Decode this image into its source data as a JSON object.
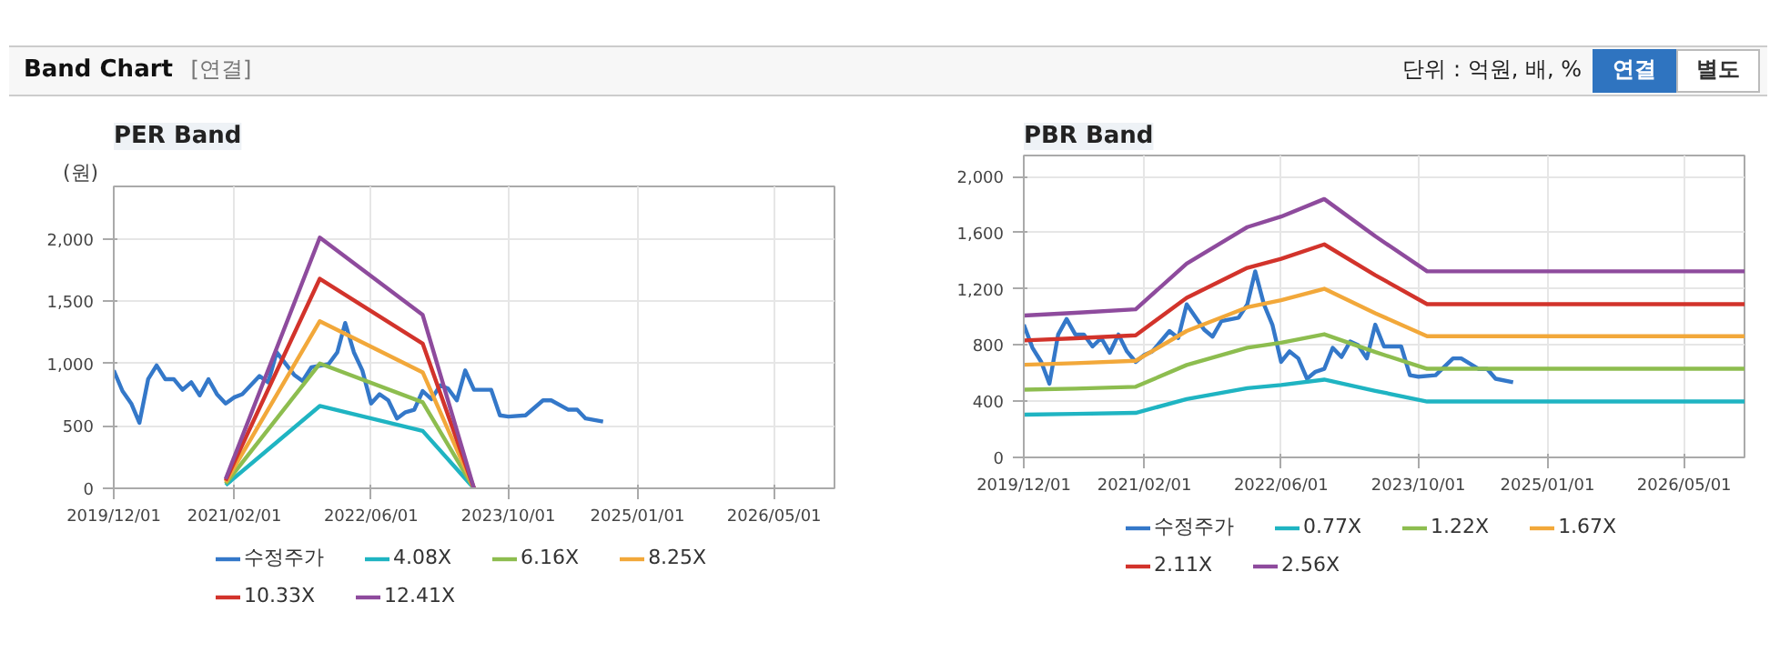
{
  "chart_data": [
    {
      "type": "line",
      "title": "PER Band",
      "ylabel": "(원)",
      "annotations": [
        "Band Chart",
        "[연결]"
      ],
      "xlim": [
        "2019-12-01",
        "2026-12-01"
      ],
      "xticks": [
        {
          "value": "2019-12-01",
          "label": "2019/12/01"
        },
        {
          "value": "2021-02-01",
          "label": "2021/02/01"
        },
        {
          "value": "2022-06-01",
          "label": "2022/06/01"
        },
        {
          "value": "2023-10-01",
          "label": "2023/10/01"
        },
        {
          "value": "2025-01-01",
          "label": "2025/01/01"
        },
        {
          "value": "2026-05-01",
          "label": "2026/05/01"
        }
      ],
      "ylim": [
        0,
        2420
      ],
      "yticks": [
        0,
        {
          "value": 500,
          "label": "500"
        },
        {
          "value": 1000,
          "label": "1,000"
        },
        {
          "value": 1500,
          "label": "1,500"
        },
        {
          "value": 2000,
          "label": "2,000"
        }
      ],
      "grid": true,
      "legend": "bottom",
      "line_style": "solid",
      "series": [
        {
          "name": "수정주가",
          "color": "#3478c9",
          "x": [
            "2019-12-01",
            "2020-01-01",
            "2020-02-01",
            "2020-03-01",
            "2020-04-01",
            "2020-05-01",
            "2020-06-01",
            "2020-07-01",
            "2020-08-01",
            "2020-09-01",
            "2020-10-01",
            "2020-11-01",
            "2020-12-01",
            "2021-01-01",
            "2021-02-01",
            "2021-03-01",
            "2021-05-01",
            "2021-06-01",
            "2021-07-01",
            "2021-09-01",
            "2021-10-01",
            "2021-11-01",
            "2022-01-01",
            "2022-02-01",
            "2022-03-01",
            "2022-04-01",
            "2022-05-01",
            "2022-06-01",
            "2022-07-01",
            "2022-08-01",
            "2022-09-01",
            "2022-10-01",
            "2022-11-01",
            "2022-12-01",
            "2023-01-01",
            "2023-02-01",
            "2023-03-01",
            "2023-04-01",
            "2023-05-01",
            "2023-06-01",
            "2023-08-01",
            "2023-09-01",
            "2023-10-01",
            "2023-12-01",
            "2024-02-01",
            "2024-03-01",
            "2024-05-01",
            "2024-06-01",
            "2024-07-01",
            "2024-09-01"
          ],
          "values": [
            945,
            780,
            680,
            525,
            875,
            985,
            875,
            875,
            790,
            850,
            745,
            875,
            755,
            680,
            730,
            755,
            900,
            850,
            1090,
            910,
            860,
            970,
            995,
            1090,
            1325,
            1090,
            945,
            680,
            755,
            705,
            560,
            610,
            630,
            780,
            715,
            825,
            800,
            705,
            945,
            790,
            790,
            585,
            575,
            585,
            705,
            705,
            630,
            630,
            560,
            535
          ]
        },
        {
          "name": "4.08X",
          "color": "#1fb4c2",
          "x": [
            "2021-01-01",
            "2021-12-01",
            "2022-12-01",
            "2023-06-01"
          ],
          "values": [
            25,
            660,
            460,
            0
          ]
        },
        {
          "name": "6.16X",
          "color": "#8dbd4f",
          "x": [
            "2021-01-01",
            "2021-12-01",
            "2022-12-01",
            "2023-06-01"
          ],
          "values": [
            37,
            1000,
            690,
            0
          ]
        },
        {
          "name": "8.25X",
          "color": "#f2a83a",
          "x": [
            "2021-01-01",
            "2021-12-01",
            "2022-12-01",
            "2023-06-01"
          ],
          "values": [
            50,
            1340,
            930,
            0
          ]
        },
        {
          "name": "10.33X",
          "color": "#d2332b",
          "x": [
            "2021-01-01",
            "2021-12-01",
            "2022-12-01",
            "2023-06-01"
          ],
          "values": [
            62,
            1680,
            1160,
            0
          ]
        },
        {
          "name": "12.41X",
          "color": "#8e4b9d",
          "x": [
            "2021-01-01",
            "2021-12-01",
            "2022-12-01",
            "2023-06-01"
          ],
          "values": [
            75,
            2010,
            1390,
            0
          ]
        }
      ]
    },
    {
      "type": "line",
      "title": "PBR Band",
      "annotations": [
        "단위 : 억원, 배, %",
        "연결",
        "별도"
      ],
      "xlim": [
        "2019-12-01",
        "2026-12-01"
      ],
      "xticks": [
        {
          "value": "2019-12-01",
          "label": "2019/12/01"
        },
        {
          "value": "2021-02-01",
          "label": "2021/02/01"
        },
        {
          "value": "2022-06-01",
          "label": "2022/06/01"
        },
        {
          "value": "2023-10-01",
          "label": "2023/10/01"
        },
        {
          "value": "2025-01-01",
          "label": "2025/01/01"
        },
        {
          "value": "2026-05-01",
          "label": "2026/05/01"
        }
      ],
      "ylim": [
        0,
        2150
      ],
      "yticks": [
        0,
        {
          "value": 400,
          "label": "400"
        },
        {
          "value": 800,
          "label": "800"
        },
        {
          "value": 1200,
          "label": "1,200"
        },
        {
          "value": 1600,
          "label": "1,600"
        },
        {
          "value": 2000,
          "label": "2,000"
        }
      ],
      "grid": true,
      "legend": "bottom",
      "line_style": "solid",
      "series": [
        {
          "name": "수정주가",
          "color": "#3478c9",
          "x": [
            "2019-12-01",
            "2020-01-01",
            "2020-02-01",
            "2020-03-01",
            "2020-04-01",
            "2020-05-01",
            "2020-06-01",
            "2020-07-01",
            "2020-08-01",
            "2020-09-01",
            "2020-10-01",
            "2020-11-01",
            "2020-12-01",
            "2021-01-01",
            "2021-02-01",
            "2021-03-01",
            "2021-05-01",
            "2021-06-01",
            "2021-07-01",
            "2021-09-01",
            "2021-10-01",
            "2021-11-01",
            "2022-01-01",
            "2022-02-01",
            "2022-03-01",
            "2022-04-01",
            "2022-05-01",
            "2022-06-01",
            "2022-07-01",
            "2022-08-01",
            "2022-09-01",
            "2022-10-01",
            "2022-11-01",
            "2022-12-01",
            "2023-01-01",
            "2023-02-01",
            "2023-03-01",
            "2023-04-01",
            "2023-05-01",
            "2023-06-01",
            "2023-08-01",
            "2023-09-01",
            "2023-10-01",
            "2023-12-01",
            "2024-02-01",
            "2024-03-01",
            "2024-05-01",
            "2024-06-01",
            "2024-07-01",
            "2024-09-01"
          ],
          "values": [
            945,
            780,
            680,
            525,
            875,
            985,
            875,
            875,
            790,
            850,
            745,
            875,
            755,
            680,
            730,
            755,
            900,
            850,
            1090,
            910,
            860,
            970,
            995,
            1090,
            1325,
            1090,
            945,
            680,
            755,
            705,
            560,
            610,
            630,
            780,
            715,
            825,
            800,
            705,
            945,
            790,
            790,
            585,
            575,
            585,
            705,
            705,
            630,
            630,
            560,
            535
          ]
        },
        {
          "name": "0.77X",
          "color": "#1fb4c2",
          "x": [
            "2019-12-01",
            "2020-06-01",
            "2021-01-01",
            "2021-07-01",
            "2022-02-01",
            "2022-06-01",
            "2022-11-01",
            "2023-05-01",
            "2023-11-01",
            "2026-12-01"
          ],
          "values": [
            304,
            310,
            317,
            415,
            493,
            516,
            554,
            474,
            398,
            398
          ]
        },
        {
          "name": "1.22X",
          "color": "#8dbd4f",
          "x": [
            "2019-12-01",
            "2020-06-01",
            "2021-01-01",
            "2021-07-01",
            "2022-02-01",
            "2022-06-01",
            "2022-11-01",
            "2023-05-01",
            "2023-11-01",
            "2026-12-01"
          ],
          "values": [
            482,
            490,
            503,
            658,
            781,
            817,
            877,
            750,
            631,
            631
          ]
        },
        {
          "name": "1.67X",
          "color": "#f2a83a",
          "x": [
            "2019-12-01",
            "2020-06-01",
            "2021-01-01",
            "2021-07-01",
            "2022-02-01",
            "2022-06-01",
            "2022-11-01",
            "2023-05-01",
            "2023-11-01",
            "2026-12-01"
          ],
          "values": [
            660,
            671,
            688,
            900,
            1069,
            1119,
            1201,
            1027,
            863,
            863
          ]
        },
        {
          "name": "2.11X",
          "color": "#d2332b",
          "x": [
            "2019-12-01",
            "2020-06-01",
            "2021-01-01",
            "2021-07-01",
            "2022-02-01",
            "2022-06-01",
            "2022-11-01",
            "2023-05-01",
            "2023-11-01",
            "2026-12-01"
          ],
          "values": [
            833,
            848,
            869,
            1137,
            1350,
            1414,
            1517,
            1298,
            1091,
            1091
          ]
        },
        {
          "name": "2.56X",
          "color": "#8e4b9d",
          "x": [
            "2019-12-01",
            "2020-06-01",
            "2021-01-01",
            "2021-07-01",
            "2022-02-01",
            "2022-06-01",
            "2022-11-01",
            "2023-05-01",
            "2023-11-01",
            "2026-12-01"
          ],
          "values": [
            1010,
            1030,
            1055,
            1380,
            1640,
            1715,
            1840,
            1575,
            1325,
            1325
          ]
        }
      ]
    }
  ]
}
